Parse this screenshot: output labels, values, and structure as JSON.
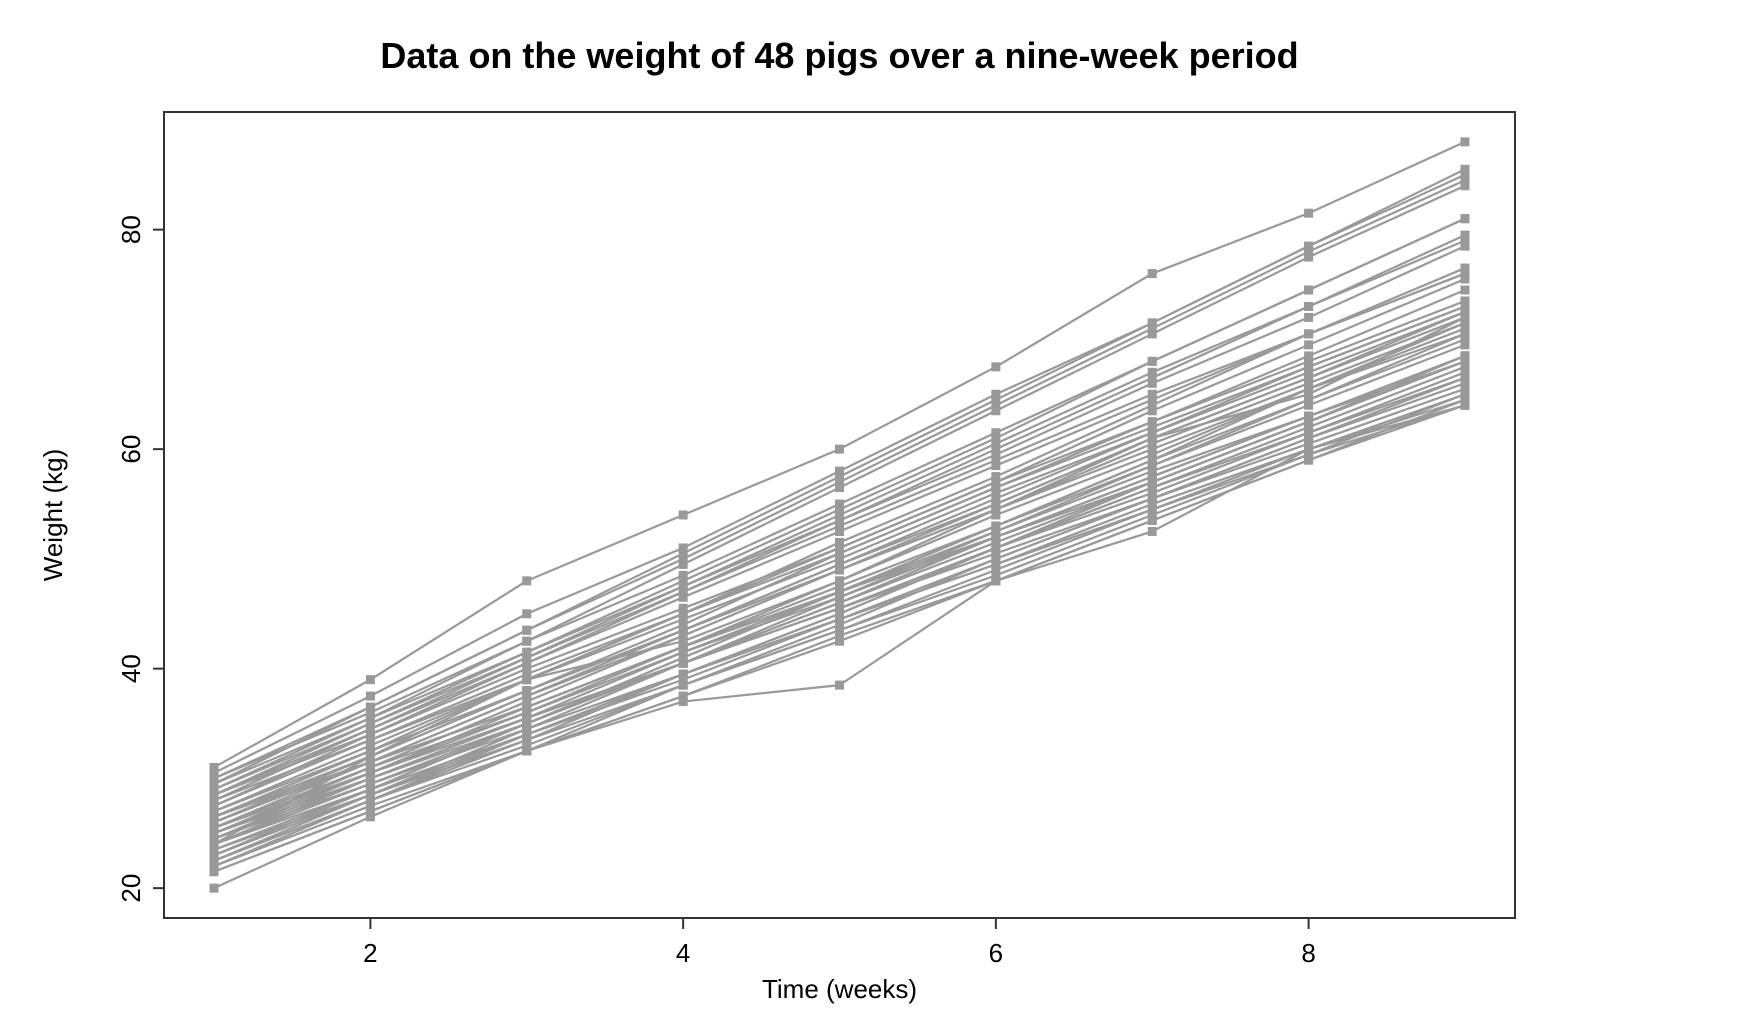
{
  "page": {
    "background_color": "#ffffff"
  },
  "chart_data": {
    "type": "line",
    "title": "Data on the weight of 48 pigs over a nine-week period",
    "xlabel": "Time (weeks)",
    "ylabel": "Weight (kg)",
    "x": [
      1,
      2,
      3,
      4,
      5,
      6,
      7,
      8,
      9
    ],
    "xticks": [
      2,
      4,
      6,
      8
    ],
    "yticks": [
      20,
      40,
      60,
      80
    ],
    "xlim": [
      1,
      9
    ],
    "ylim": [
      20,
      88
    ],
    "grid": false,
    "legend": null,
    "marker": "square",
    "marker_size": 9,
    "line_color": "#999999",
    "axis_color": "#333333",
    "text_color": "#000000",
    "series": [
      [
        24,
        32,
        39,
        42.5,
        48,
        54.5,
        61,
        65,
        72
      ],
      [
        20,
        26.5,
        32.5,
        37,
        38.5,
        48,
        52.5,
        60,
        64
      ],
      [
        31,
        39,
        48,
        54,
        60,
        67.5,
        76,
        81.5,
        88
      ],
      [
        30.5,
        37.5,
        45,
        51,
        58,
        65,
        71.5,
        78.5,
        85.5
      ],
      [
        30,
        36.5,
        43.5,
        50,
        57,
        64,
        71,
        78,
        84.5
      ],
      [
        30,
        36,
        42.5,
        48.5,
        55,
        61.5,
        68,
        74.5,
        81
      ],
      [
        29.5,
        36.5,
        43.5,
        50.5,
        57.5,
        64.5,
        71.5,
        78.5,
        85
      ],
      [
        29.5,
        35.5,
        41.5,
        47.5,
        53.5,
        60,
        66.5,
        73,
        79
      ],
      [
        29,
        35,
        41,
        47,
        53,
        59,
        65,
        70.5,
        76
      ],
      [
        29,
        35.5,
        42.5,
        49.5,
        56.5,
        63.5,
        70.5,
        77.5,
        84
      ],
      [
        28.5,
        35,
        41.5,
        48,
        54.5,
        61,
        68,
        74.5,
        81
      ],
      [
        28.5,
        34.5,
        40.5,
        46.5,
        52.5,
        58.5,
        64.5,
        70.5,
        76
      ],
      [
        28.5,
        34,
        40,
        45.5,
        51,
        57,
        62.5,
        68,
        73.5
      ],
      [
        28,
        34.5,
        41,
        47.5,
        54,
        60.5,
        67,
        73,
        79.5
      ],
      [
        28,
        33.5,
        39.5,
        45,
        50.5,
        56.5,
        62,
        67.5,
        73
      ],
      [
        27.5,
        34,
        40.5,
        47,
        53.5,
        59.5,
        66,
        72,
        78.5
      ],
      [
        27.5,
        33.5,
        39,
        44.5,
        50,
        56,
        61.5,
        67,
        72.5
      ],
      [
        27,
        33,
        39,
        45,
        51,
        57,
        63.5,
        69.5,
        75.5
      ],
      [
        27,
        32.5,
        38,
        43.5,
        49,
        54.5,
        60,
        65.5,
        70.5
      ],
      [
        26.5,
        32.5,
        39,
        45,
        51.5,
        57.5,
        64,
        70.5,
        76.5
      ],
      [
        26.5,
        32,
        38,
        43.5,
        49.5,
        55,
        61,
        66.5,
        72
      ],
      [
        26.5,
        31.5,
        36.5,
        42,
        47,
        52,
        57.5,
        63,
        68
      ],
      [
        26,
        32,
        38,
        44,
        50.5,
        56.5,
        62.5,
        68.5,
        74.5
      ],
      [
        26,
        31.5,
        37.5,
        43,
        49,
        54.5,
        60.5,
        66,
        71.5
      ],
      [
        26,
        31.5,
        36.5,
        42,
        47,
        52.5,
        58,
        63,
        68.5
      ],
      [
        25.5,
        31.5,
        37.5,
        43.5,
        49.5,
        55.5,
        61.5,
        67.5,
        73
      ],
      [
        25.5,
        31,
        36,
        41.5,
        46.5,
        52,
        57,
        62.5,
        68
      ],
      [
        25.5,
        30.5,
        35.5,
        40.5,
        45.5,
        50.5,
        55.5,
        60.5,
        65.5
      ],
      [
        25,
        31,
        37,
        43,
        49,
        55,
        61,
        66.5,
        72.5
      ],
      [
        25,
        30.5,
        36,
        42,
        47.5,
        53,
        58.5,
        64,
        69.5
      ],
      [
        25,
        30,
        35.5,
        40.5,
        45.5,
        51,
        56,
        61.5,
        66.5
      ],
      [
        24.5,
        30.5,
        36.5,
        42,
        48,
        54,
        59.5,
        65.5,
        71
      ],
      [
        24.5,
        30,
        35,
        40.5,
        45.5,
        51,
        56.5,
        61.5,
        67
      ],
      [
        24.5,
        29.5,
        34.5,
        39.5,
        44.5,
        49.5,
        54.5,
        60,
        64.5
      ],
      [
        24,
        30,
        35.5,
        41.5,
        47,
        53,
        59,
        64.5,
        70.5
      ],
      [
        24,
        29.5,
        35,
        40.5,
        46,
        51.5,
        57,
        62.5,
        68
      ],
      [
        24,
        29,
        34,
        39,
        44.5,
        49.5,
        55,
        60,
        65
      ],
      [
        23.5,
        29,
        35,
        40.5,
        46,
        52,
        57.5,
        63,
        68.5
      ],
      [
        23.5,
        28.5,
        33.5,
        38.5,
        43.5,
        48.5,
        54,
        59.5,
        64
      ],
      [
        23,
        29,
        35,
        41,
        47,
        53,
        59,
        65.5,
        71.5
      ],
      [
        23,
        28.5,
        34,
        39.5,
        44.5,
        50,
        55.5,
        61,
        66
      ],
      [
        22.5,
        28.5,
        34.5,
        40.5,
        46.5,
        52.5,
        58.5,
        64.5,
        70
      ],
      [
        22.5,
        28,
        34,
        39.5,
        45,
        51,
        56.5,
        62,
        67.5
      ],
      [
        22.5,
        28,
        33,
        38.5,
        43.5,
        49,
        54.5,
        59.5,
        65
      ],
      [
        22,
        28,
        33.5,
        39.5,
        45,
        51,
        57,
        62.5,
        68.5
      ],
      [
        22,
        27.5,
        32.5,
        37.5,
        43,
        48,
        53.5,
        59,
        64.5
      ],
      [
        21.5,
        27,
        32.5,
        38.5,
        44,
        50,
        55.5,
        61,
        66.5
      ],
      [
        21.5,
        27,
        32.5,
        37.5,
        42.5,
        48,
        53.5,
        59,
        64
      ]
    ]
  }
}
